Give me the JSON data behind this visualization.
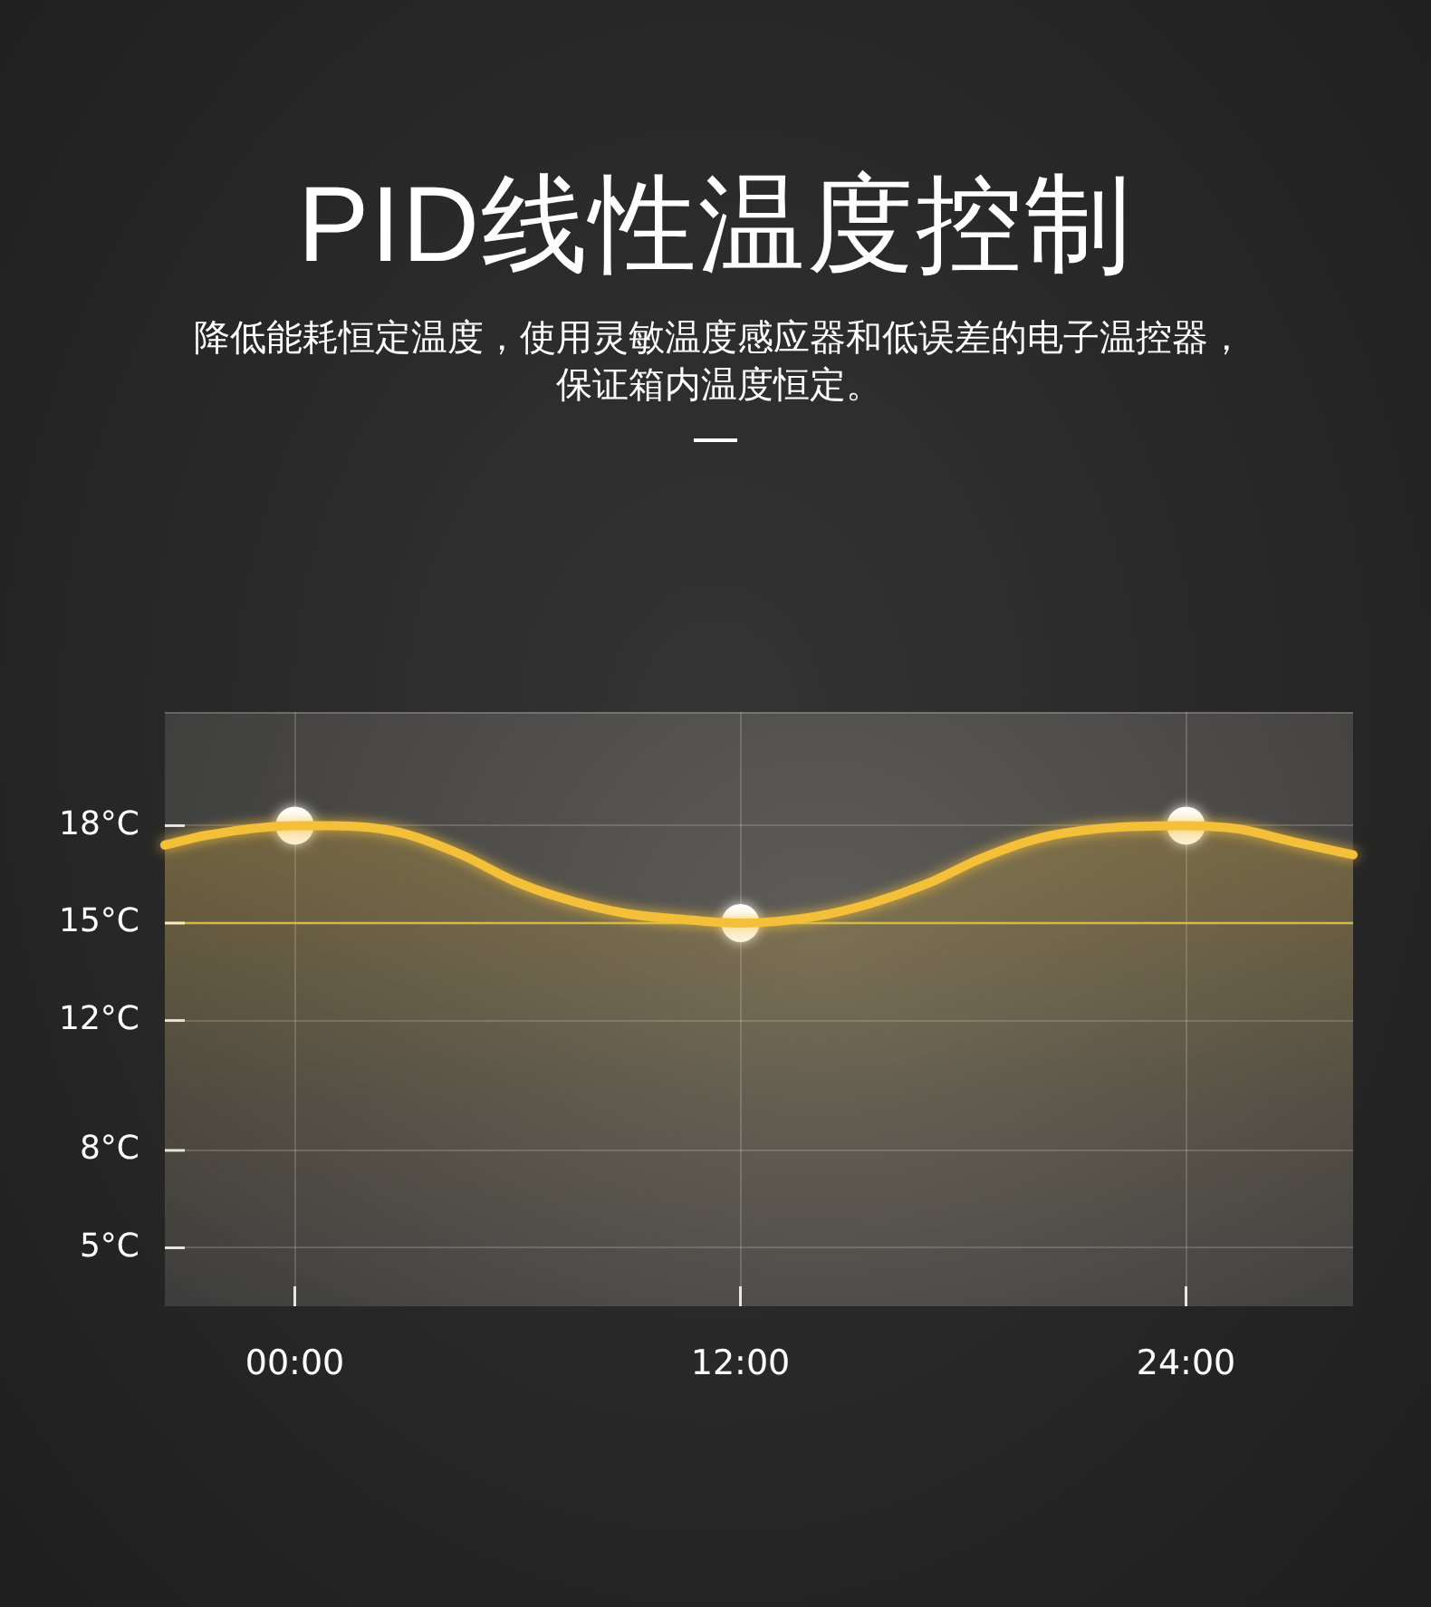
{
  "chart_data": {
    "type": "area",
    "title": "PID线性温度控制",
    "subtitle": "降低能耗恒定温度，使用灵敏温度感应器和低误差的电子温控器，保证箱内温度恒定。",
    "xlim": [
      -3.5,
      28.5
    ],
    "xticks": [
      {
        "value": 0,
        "label": "00:00"
      },
      {
        "value": 12,
        "label": "12:00"
      },
      {
        "value": 24,
        "label": "24:00"
      }
    ],
    "ylim": [
      3.2,
      21.5
    ],
    "yticks": [
      {
        "value": 5,
        "label": "5°C"
      },
      {
        "value": 8,
        "label": "8°C"
      },
      {
        "value": 12,
        "label": "12°C"
      },
      {
        "value": 15,
        "label": "15°C"
      },
      {
        "value": 18,
        "label": "18°C"
      }
    ],
    "grid": true,
    "ref_lines": [
      {
        "axis": "y",
        "value": 15,
        "color": "#cbb84a"
      }
    ],
    "series": [
      {
        "color": "#f4c03a",
        "marker": "none",
        "x": [
          -3.5,
          -2.4,
          0,
          1,
          2.8,
          4.5,
          5.9,
          7.1,
          8.9,
          10.6,
          12,
          14,
          15.5,
          17,
          18.5,
          20,
          21.6,
          24,
          25.4,
          26.9,
          28.5
        ],
        "values": [
          17.4,
          17.7,
          18,
          18,
          17.8,
          17.1,
          16.3,
          15.8,
          15.3,
          15.1,
          15,
          15.2,
          15.6,
          16.2,
          17,
          17.6,
          17.9,
          18,
          17.9,
          17.5,
          17.1
        ]
      },
      {
        "type": "scatter",
        "color": "#ffffff",
        "marker": "circle",
        "x": [
          0,
          12,
          24
        ],
        "values": [
          18,
          15,
          18
        ]
      }
    ]
  }
}
